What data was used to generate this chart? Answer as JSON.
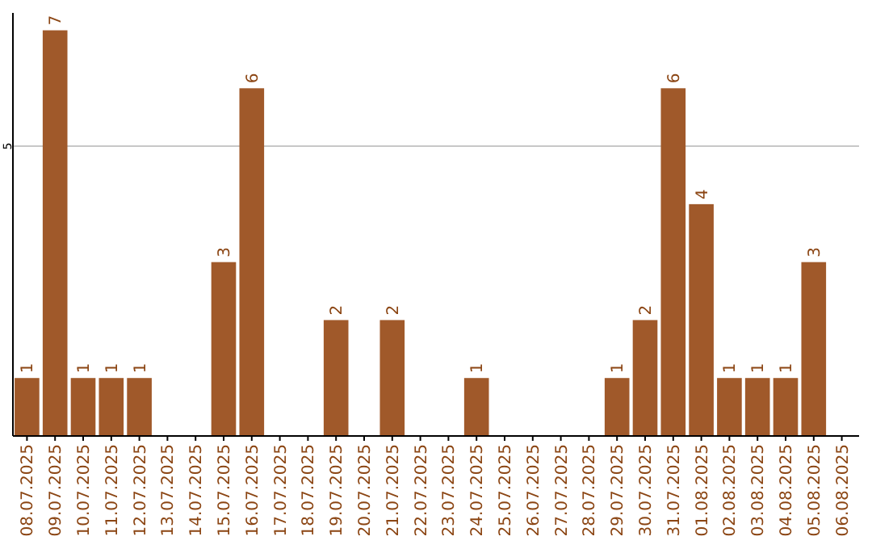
{
  "chart_data": {
    "type": "bar",
    "categories": [
      "08.07.2025",
      "09.07.2025",
      "10.07.2025",
      "11.07.2025",
      "12.07.2025",
      "13.07.2025",
      "14.07.2025",
      "15.07.2025",
      "16.07.2025",
      "17.07.2025",
      "18.07.2025",
      "19.07.2025",
      "20.07.2025",
      "21.07.2025",
      "22.07.2025",
      "23.07.2025",
      "24.07.2025",
      "25.07.2025",
      "26.07.2025",
      "27.07.2025",
      "28.07.2025",
      "29.07.2025",
      "30.07.2025",
      "31.07.2025",
      "01.08.2025",
      "02.08.2025",
      "03.08.2025",
      "04.08.2025",
      "05.08.2025",
      "06.08.2025"
    ],
    "values": [
      1,
      7,
      1,
      1,
      1,
      0,
      0,
      3,
      6,
      0,
      0,
      2,
      0,
      2,
      0,
      0,
      1,
      0,
      0,
      0,
      0,
      1,
      2,
      6,
      4,
      1,
      1,
      1,
      3,
      0
    ],
    "value_labels": [
      "1",
      "7",
      "1",
      "1",
      "1",
      null,
      null,
      "3",
      "6",
      null,
      null,
      "2",
      null,
      "2",
      null,
      null,
      "1",
      null,
      null,
      null,
      null,
      "1",
      "2",
      "6",
      "4",
      "1",
      "1",
      "1",
      "3",
      null
    ],
    "color": "#a0592a",
    "ylim": [
      0,
      7.3
    ],
    "yticks": [
      5
    ],
    "grid": "y"
  }
}
